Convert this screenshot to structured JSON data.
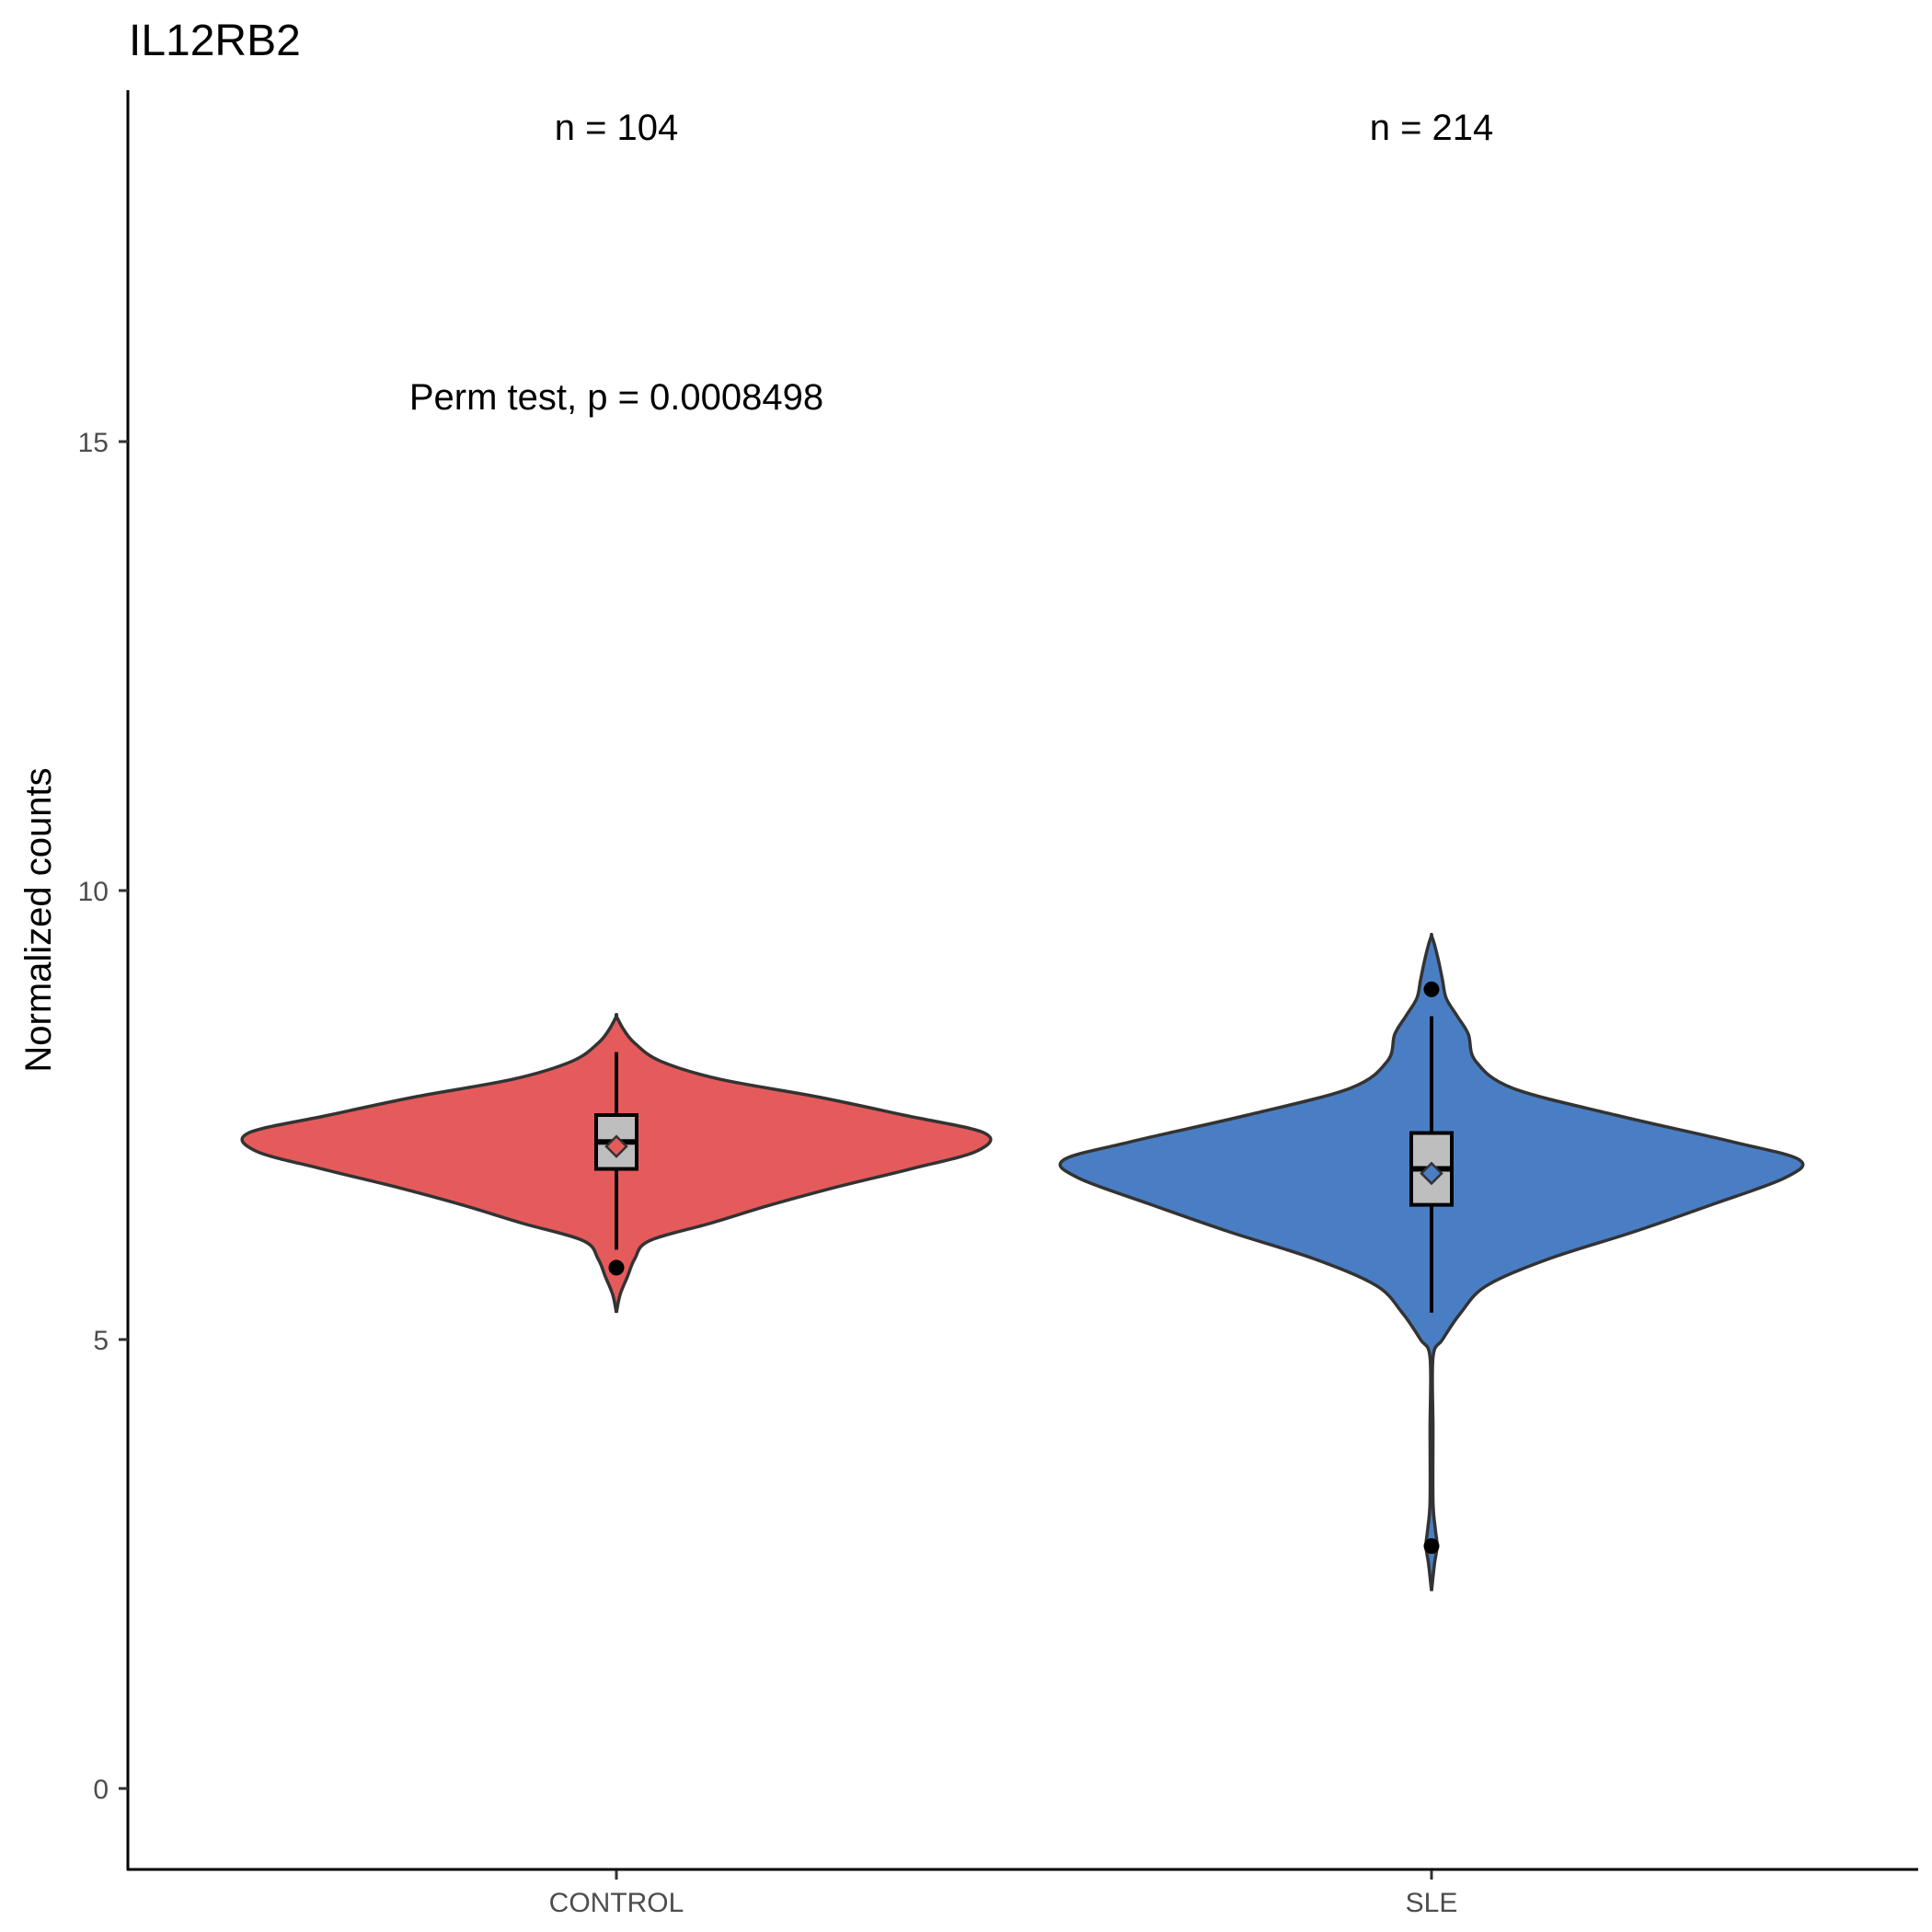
{
  "chart_data": {
    "type": "violin",
    "title": "IL12RB2",
    "xlabel": "",
    "ylabel": "Normalized counts",
    "ylim": [
      -0.8,
      18.9
    ],
    "yticks": [
      0,
      5,
      10,
      15
    ],
    "grid": false,
    "legend": "none",
    "stat_annotation": "Perm test, p = 0.0008498",
    "categories": [
      "CONTROL",
      "SLE"
    ],
    "groups": [
      {
        "category": "CONTROL",
        "n_label": "n = 104",
        "color": "#E55B5B",
        "box": {
          "q1": 6.9,
          "median": 7.2,
          "q3": 7.5,
          "whisker_low": 6.0,
          "whisker_high": 8.2,
          "mean": 7.15
        },
        "outliers": [
          5.8
        ],
        "density": [
          [
            5.3,
            0.0
          ],
          [
            5.5,
            0.01
          ],
          [
            5.7,
            0.03
          ],
          [
            5.9,
            0.05
          ],
          [
            6.1,
            0.09
          ],
          [
            6.3,
            0.26
          ],
          [
            6.5,
            0.42
          ],
          [
            6.7,
            0.6
          ],
          [
            6.9,
            0.8
          ],
          [
            7.1,
            0.98
          ],
          [
            7.3,
            1.0
          ],
          [
            7.5,
            0.78
          ],
          [
            7.7,
            0.55
          ],
          [
            7.9,
            0.28
          ],
          [
            8.1,
            0.12
          ],
          [
            8.3,
            0.05
          ],
          [
            8.45,
            0.02
          ],
          [
            8.6,
            0.0
          ]
        ]
      },
      {
        "category": "SLE",
        "n_label": "n = 214",
        "color": "#4A7EC4",
        "box": {
          "q1": 6.5,
          "median": 6.9,
          "q3": 7.3,
          "whisker_low": 5.3,
          "whisker_high": 8.6,
          "mean": 6.85
        },
        "outliers": [
          8.9,
          2.7
        ],
        "density": [
          [
            2.2,
            0.0
          ],
          [
            2.5,
            0.008
          ],
          [
            2.7,
            0.015
          ],
          [
            2.9,
            0.01
          ],
          [
            3.2,
            0.004
          ],
          [
            4.0,
            0.004
          ],
          [
            4.8,
            0.004
          ],
          [
            5.0,
            0.03
          ],
          [
            5.3,
            0.08
          ],
          [
            5.6,
            0.15
          ],
          [
            5.9,
            0.32
          ],
          [
            6.2,
            0.55
          ],
          [
            6.5,
            0.76
          ],
          [
            6.8,
            0.96
          ],
          [
            7.0,
            1.0
          ],
          [
            7.2,
            0.82
          ],
          [
            7.5,
            0.5
          ],
          [
            7.8,
            0.22
          ],
          [
            8.1,
            0.12
          ],
          [
            8.4,
            0.1
          ],
          [
            8.6,
            0.07
          ],
          [
            8.8,
            0.04
          ],
          [
            9.0,
            0.03
          ],
          [
            9.2,
            0.02
          ],
          [
            9.4,
            0.008
          ],
          [
            9.5,
            0.0
          ]
        ]
      }
    ]
  }
}
